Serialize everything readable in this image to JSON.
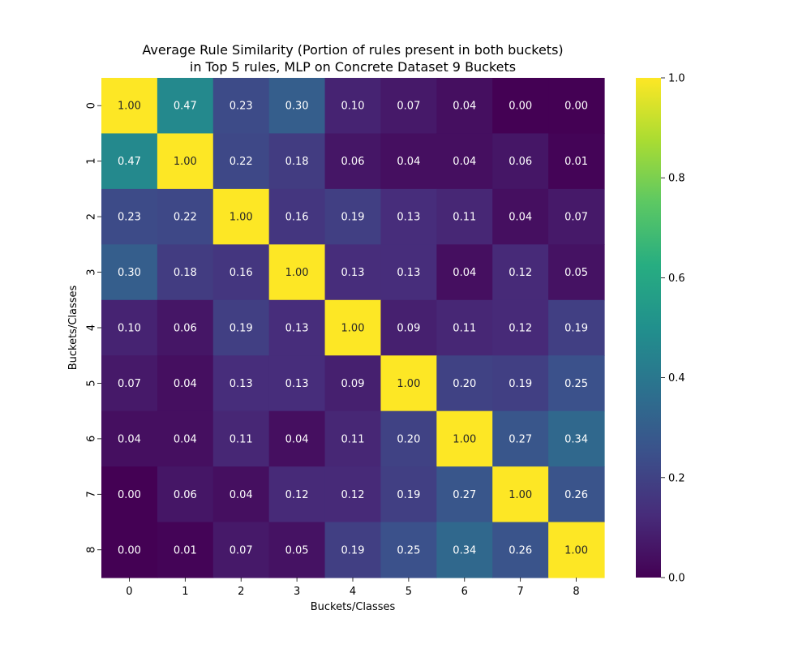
{
  "chart_data": {
    "type": "heatmap",
    "title_lines": [
      "Average Rule Similarity (Portion of rules present in both buckets)",
      "in Top 5 rules, MLP on Concrete Dataset 9 Buckets"
    ],
    "xlabel": "Buckets/Classes",
    "ylabel": "Buckets/Classes",
    "x_categories": [
      "0",
      "1",
      "2",
      "3",
      "4",
      "5",
      "6",
      "7",
      "8"
    ],
    "y_categories": [
      "0",
      "1",
      "2",
      "3",
      "4",
      "5",
      "6",
      "7",
      "8"
    ],
    "values": [
      [
        1.0,
        0.47,
        0.23,
        0.3,
        0.1,
        0.07,
        0.04,
        0.0,
        0.0
      ],
      [
        0.47,
        1.0,
        0.22,
        0.18,
        0.06,
        0.04,
        0.04,
        0.06,
        0.01
      ],
      [
        0.23,
        0.22,
        1.0,
        0.16,
        0.19,
        0.13,
        0.11,
        0.04,
        0.07
      ],
      [
        0.3,
        0.18,
        0.16,
        1.0,
        0.13,
        0.13,
        0.04,
        0.12,
        0.05
      ],
      [
        0.1,
        0.06,
        0.19,
        0.13,
        1.0,
        0.09,
        0.11,
        0.12,
        0.19
      ],
      [
        0.07,
        0.04,
        0.13,
        0.13,
        0.09,
        1.0,
        0.2,
        0.19,
        0.25
      ],
      [
        0.04,
        0.04,
        0.11,
        0.04,
        0.11,
        0.2,
        1.0,
        0.27,
        0.34
      ],
      [
        0.0,
        0.06,
        0.04,
        0.12,
        0.12,
        0.19,
        0.27,
        1.0,
        0.26
      ],
      [
        0.0,
        0.01,
        0.07,
        0.05,
        0.19,
        0.25,
        0.34,
        0.26,
        1.0
      ]
    ],
    "value_format_decimals": 2,
    "colormap": "viridis",
    "vmin": 0.0,
    "vmax": 1.0,
    "colorbar_ticks": [
      "0.0",
      "0.2",
      "0.4",
      "0.6",
      "0.8",
      "1.0"
    ],
    "colorbar_tick_values": [
      0.0,
      0.2,
      0.4,
      0.6,
      0.8,
      1.0
    ],
    "legend_placement": "right"
  }
}
